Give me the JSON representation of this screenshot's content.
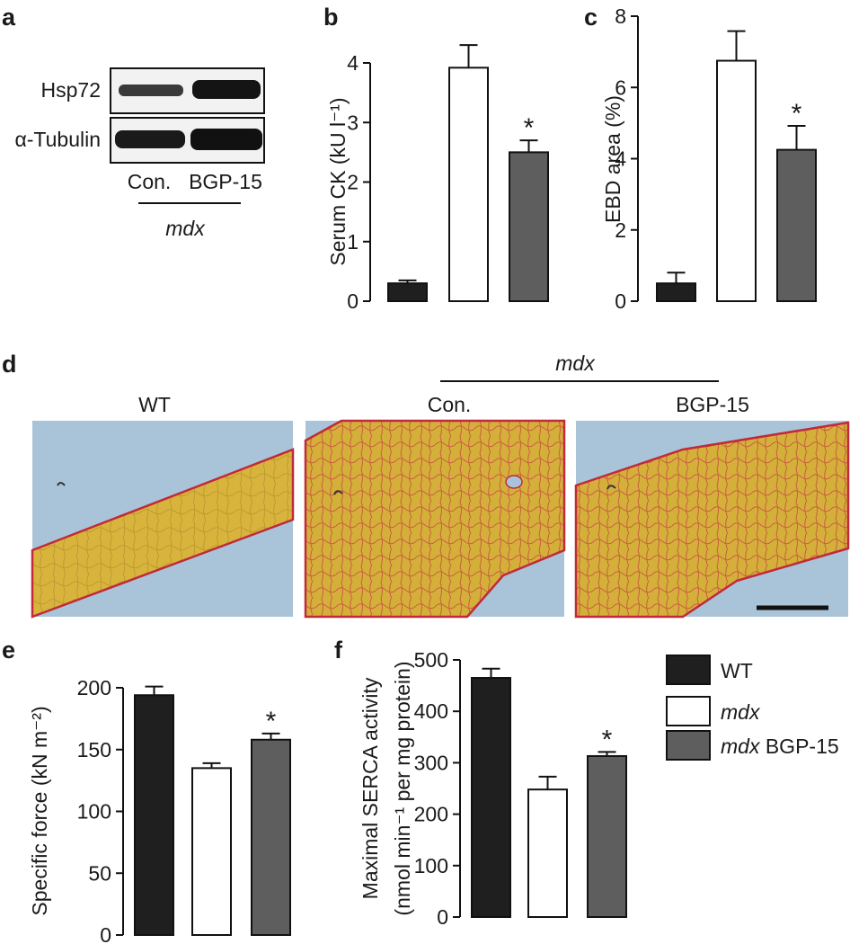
{
  "panel_labels": {
    "a": "a",
    "b": "b",
    "c": "c",
    "d": "d",
    "e": "e",
    "f": "f"
  },
  "western_blot": {
    "rows": [
      "Hsp72",
      "α-Tubulin"
    ],
    "lanes": [
      "Con.",
      "BGP-15"
    ],
    "group": "mdx"
  },
  "micrographs": {
    "group": "mdx",
    "titles": [
      "WT",
      "Con.",
      "BGP-15"
    ]
  },
  "legend": {
    "items": [
      {
        "label": "WT",
        "italic": "",
        "color": "#1f1f1f"
      },
      {
        "label": "",
        "italic": "mdx",
        "color": "#ffffff"
      },
      {
        "label": " BGP-15",
        "italic": "mdx",
        "color": "#5e5e5e"
      }
    ]
  },
  "colors": {
    "wt": "#1f1f1f",
    "mdx": "#ffffff",
    "bgp15": "#5e5e5e",
    "stain_yellow": "#d9b53a",
    "stain_red": "#c02a3a",
    "background_blue": "#a9c4d8"
  },
  "chart_data": [
    {
      "panel": "b",
      "type": "bar",
      "categories": [
        "WT",
        "mdx",
        "mdx BGP-15"
      ],
      "values": [
        0.3,
        3.92,
        2.5
      ],
      "errors": [
        0.05,
        0.38,
        0.2
      ],
      "significant": [
        false,
        false,
        true
      ],
      "sig_marker": "*",
      "ylabel": "Serum CK (kU l⁻¹)",
      "yticks": [
        "0",
        "1",
        "2",
        "3",
        "4"
      ],
      "ylim": [
        0,
        4.0
      ]
    },
    {
      "panel": "c",
      "type": "bar",
      "categories": [
        "WT",
        "mdx",
        "mdx BGP-15"
      ],
      "values": [
        0.5,
        6.75,
        4.25
      ],
      "errors": [
        0.3,
        0.83,
        0.67
      ],
      "significant": [
        false,
        false,
        true
      ],
      "sig_marker": "*",
      "ylabel": "EBD area (%)",
      "yticks": [
        "0",
        "2",
        "4",
        "6",
        "8"
      ],
      "ylim": [
        0,
        8
      ]
    },
    {
      "panel": "e",
      "type": "bar",
      "categories": [
        "WT",
        "mdx",
        "mdx BGP-15"
      ],
      "values": [
        194,
        135,
        158
      ],
      "errors": [
        7,
        4,
        5
      ],
      "significant": [
        false,
        false,
        true
      ],
      "sig_marker": "*",
      "ylabel": "Specific force (kN m⁻²)",
      "yticks": [
        "0",
        "50",
        "100",
        "150",
        "200"
      ],
      "ylim": [
        0,
        200
      ]
    },
    {
      "panel": "f",
      "type": "bar",
      "categories": [
        "WT",
        "mdx",
        "mdx BGP-15"
      ],
      "values": [
        465,
        248,
        313
      ],
      "errors": [
        18,
        25,
        8
      ],
      "significant": [
        false,
        false,
        true
      ],
      "sig_marker": "*",
      "ylabel": "Maximal SERCA activity",
      "ylabel2": "(nmol min⁻¹ per mg protein)",
      "yticks": [
        "0",
        "100",
        "200",
        "300",
        "400",
        "500"
      ],
      "ylim": [
        0,
        500
      ]
    }
  ]
}
